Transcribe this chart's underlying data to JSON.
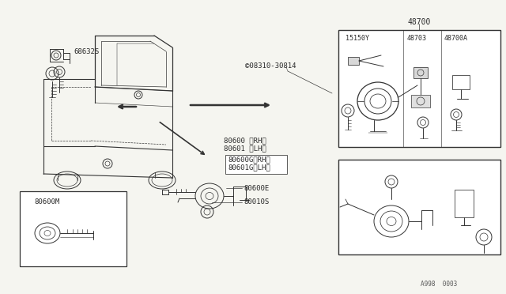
{
  "bg_color": "#f5f5f0",
  "fig_width": 6.4,
  "fig_height": 3.72,
  "dpi": 100,
  "watermark": "A998  0003",
  "label_68632S": "68632S",
  "label_08310": "©08310-30814",
  "label_48700": "48700",
  "label_15150Y": "15150Y",
  "label_48703": "48703",
  "label_48700A": "48700A",
  "label_80600RH": "80600 〈RH〉",
  "label_80601LH": "80601 〈LH〉",
  "label_80600GRH": "80600G〈RH〉",
  "label_80601GLH": "80601G〈LH〉",
  "label_80600E": "80600E",
  "label_80010S": "80010S",
  "label_80600M": "80600M"
}
